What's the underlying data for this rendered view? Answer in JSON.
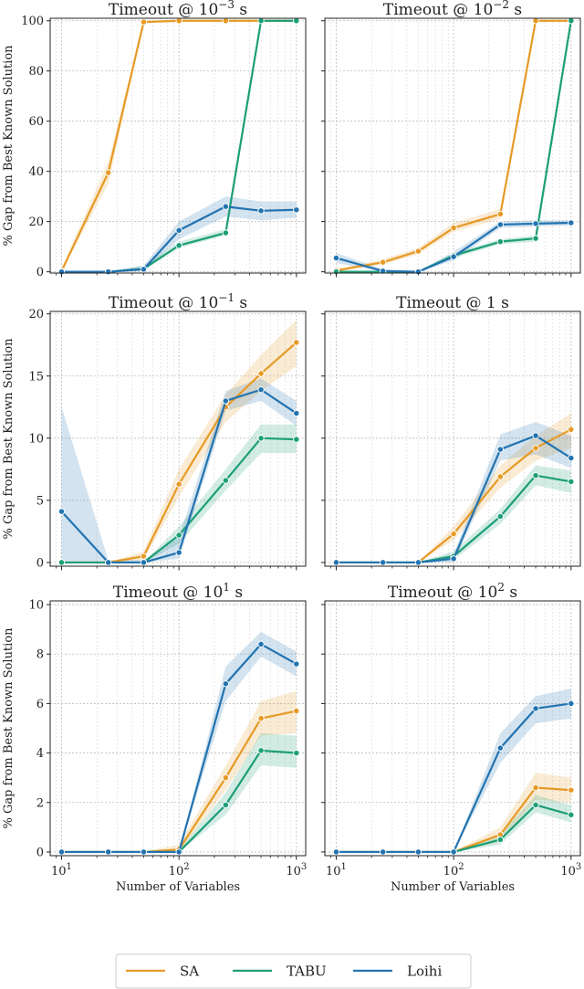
{
  "chart_data": {
    "type": "line",
    "xlabel": "Number of Variables",
    "ylabel": "% Gap from Best Known Solution",
    "x": [
      10,
      25,
      50,
      100,
      250,
      500,
      1000
    ],
    "xscale": "log",
    "xlim": [
      8,
      1200
    ],
    "x_ticks": [
      10,
      100,
      1000
    ],
    "legend": {
      "placement": "bottom-center",
      "entries": [
        {
          "name": "SA",
          "color": "#e69a26"
        },
        {
          "name": "TABU",
          "color": "#1c9e77"
        },
        {
          "name": "Loihi",
          "color": "#2273b0"
        }
      ]
    },
    "panels": [
      {
        "title_base": "Timeout @ 10",
        "title_exp": "−3",
        "title_suffix": " s",
        "ylim": [
          -0.5,
          101
        ],
        "y_ticks": [
          0,
          20,
          40,
          60,
          80,
          100
        ],
        "series": [
          {
            "name": "SA",
            "values": [
              0.3,
              39.5,
              99.5,
              100,
              100,
              100,
              100
            ],
            "lower": [
              0.1,
              35,
              99,
              99.8,
              99.8,
              99.8,
              99.8
            ],
            "upper": [
              1.5,
              44,
              100,
              100,
              100,
              100,
              100
            ]
          },
          {
            "name": "TABU",
            "values": [
              0,
              0,
              1.2,
              10.5,
              15.5,
              100,
              100
            ],
            "lower": [
              0,
              0,
              0.5,
              9.5,
              14.5,
              99.8,
              99.8
            ],
            "upper": [
              0,
              0,
              2.5,
              12,
              17,
              100,
              100
            ]
          },
          {
            "name": "Loihi",
            "values": [
              0,
              0,
              1.0,
              16.5,
              26,
              24.3,
              24.7
            ],
            "lower": [
              0,
              0,
              0.2,
              13,
              22,
              20.5,
              21.5
            ],
            "upper": [
              0,
              0,
              2.5,
              20,
              30,
              28,
              28
            ]
          }
        ]
      },
      {
        "title_base": "Timeout @ 10",
        "title_exp": "−2",
        "title_suffix": " s",
        "ylim": [
          -0.5,
          101
        ],
        "y_ticks": [
          0,
          20,
          40,
          60,
          80,
          100
        ],
        "series": [
          {
            "name": "SA",
            "values": [
              0.5,
              3.8,
              8.2,
              17.5,
              23,
              100,
              100
            ],
            "lower": [
              0.2,
              2.8,
              7,
              16,
              21,
              99.8,
              99.8
            ],
            "upper": [
              1,
              5,
              9.5,
              19.5,
              25,
              100,
              100
            ]
          },
          {
            "name": "TABU",
            "values": [
              0,
              0,
              0,
              6.5,
              12,
              13.3,
              100
            ],
            "lower": [
              0,
              0,
              0,
              5.5,
              11,
              12,
              99.8
            ],
            "upper": [
              0,
              0,
              0,
              7.5,
              13,
              14.5,
              100
            ]
          },
          {
            "name": "Loihi",
            "values": [
              5.5,
              0.3,
              0,
              6,
              18.8,
              19.2,
              19.5
            ],
            "lower": [
              3.5,
              0,
              0,
              4.5,
              17.5,
              18,
              18.5
            ],
            "upper": [
              7.5,
              1,
              0.3,
              8,
              20,
              20.5,
              20.5
            ]
          }
        ]
      },
      {
        "title_base": "Timeout @ 10",
        "title_exp": "−1",
        "title_suffix": " s",
        "ylim": [
          -0.3,
          20.2
        ],
        "y_ticks": [
          0,
          5,
          10,
          15,
          20
        ],
        "series": [
          {
            "name": "SA",
            "values": [
              0,
              0,
              0.5,
              6.3,
              12.5,
              15.2,
              17.7
            ],
            "lower": [
              0,
              0,
              0.2,
              5.3,
              11.3,
              13.8,
              15.8
            ],
            "upper": [
              0,
              0,
              0.9,
              7.5,
              13.5,
              16.7,
              19.5
            ]
          },
          {
            "name": "TABU",
            "values": [
              0,
              0,
              0,
              2.2,
              6.6,
              10,
              9.9
            ],
            "lower": [
              0,
              0,
              0,
              1.5,
              5.8,
              8.8,
              8.8
            ],
            "upper": [
              0,
              0,
              0,
              2.9,
              7.5,
              11.1,
              11.1
            ]
          },
          {
            "name": "Loihi",
            "values": [
              4.1,
              0,
              0,
              0.8,
              13,
              13.9,
              12
            ],
            "lower": [
              0,
              0,
              0,
              0.3,
              12.2,
              13,
              11
            ],
            "upper": [
              12.5,
              0.2,
              0.2,
              2,
              13.8,
              14.8,
              13
            ]
          }
        ]
      },
      {
        "title_base": "Timeout @ 1",
        "title_exp": "",
        "title_suffix": " s",
        "ylim": [
          -0.3,
          20.2
        ],
        "y_ticks": [
          0,
          5,
          10,
          15,
          20
        ],
        "series": [
          {
            "name": "SA",
            "values": [
              0,
              0,
              0,
              2.3,
              6.9,
              9.2,
              10.7
            ],
            "lower": [
              0,
              0,
              0,
              1.8,
              6,
              8.2,
              9.2
            ],
            "upper": [
              0,
              0,
              0,
              2.9,
              7.8,
              10.2,
              12
            ]
          },
          {
            "name": "TABU",
            "values": [
              0,
              0,
              0,
              0.5,
              3.7,
              7,
              6.5
            ],
            "lower": [
              0,
              0,
              0,
              0.2,
              3.1,
              6.2,
              5.6
            ],
            "upper": [
              0,
              0,
              0,
              0.9,
              4.3,
              7.8,
              7.4
            ]
          },
          {
            "name": "Loihi",
            "values": [
              0,
              0,
              0,
              0.3,
              9.1,
              10.2,
              8.4
            ],
            "lower": [
              0,
              0,
              0,
              0,
              8.2,
              8.7,
              7.6
            ],
            "upper": [
              0,
              0,
              0,
              0.7,
              10.3,
              11.3,
              10.2
            ]
          }
        ]
      },
      {
        "title_base": "Timeout @ 10",
        "title_exp": "1",
        "title_suffix": " s",
        "ylim": [
          -0.15,
          10.15
        ],
        "y_ticks": [
          0,
          2,
          4,
          6,
          8,
          10
        ],
        "series": [
          {
            "name": "SA",
            "values": [
              0,
              0,
              0,
              0.1,
              3,
              5.4,
              5.7
            ],
            "lower": [
              0,
              0,
              0,
              0,
              2.5,
              4.7,
              4.8
            ],
            "upper": [
              0,
              0,
              0,
              0.3,
              3.5,
              6.1,
              6.5
            ]
          },
          {
            "name": "TABU",
            "values": [
              0,
              0,
              0,
              0,
              1.9,
              4.1,
              4.0
            ],
            "lower": [
              0,
              0,
              0,
              0,
              1.5,
              3.5,
              3.4
            ],
            "upper": [
              0,
              0,
              0,
              0.1,
              2.4,
              4.8,
              4.7
            ]
          },
          {
            "name": "Loihi",
            "values": [
              0,
              0,
              0,
              0,
              6.8,
              8.4,
              7.6
            ],
            "lower": [
              0,
              0,
              0,
              0,
              6.1,
              7.9,
              7.1
            ],
            "upper": [
              0,
              0,
              0,
              0,
              7.5,
              8.9,
              8.1
            ]
          }
        ]
      },
      {
        "title_base": "Timeout @ 10",
        "title_exp": "2",
        "title_suffix": " s",
        "ylim": [
          -0.15,
          10.15
        ],
        "y_ticks": [
          0,
          2,
          4,
          6,
          8,
          10
        ],
        "series": [
          {
            "name": "SA",
            "values": [
              0,
              0,
              0,
              0,
              0.7,
              2.6,
              2.5
            ],
            "lower": [
              0,
              0,
              0,
              0,
              0.4,
              2.1,
              2.0
            ],
            "upper": [
              0,
              0,
              0,
              0,
              1.0,
              3.2,
              3.0
            ]
          },
          {
            "name": "TABU",
            "values": [
              0,
              0,
              0,
              0,
              0.5,
              1.9,
              1.5
            ],
            "lower": [
              0,
              0,
              0,
              0,
              0.3,
              1.6,
              1.2
            ],
            "upper": [
              0,
              0,
              0,
              0,
              0.7,
              2.3,
              1.9
            ]
          },
          {
            "name": "Loihi",
            "values": [
              0,
              0,
              0,
              0,
              4.2,
              5.8,
              6.0
            ],
            "lower": [
              0,
              0,
              0,
              0,
              3.6,
              5.2,
              5.4
            ],
            "upper": [
              0,
              0,
              0,
              0,
              4.8,
              6.3,
              6.6
            ]
          }
        ]
      }
    ]
  }
}
